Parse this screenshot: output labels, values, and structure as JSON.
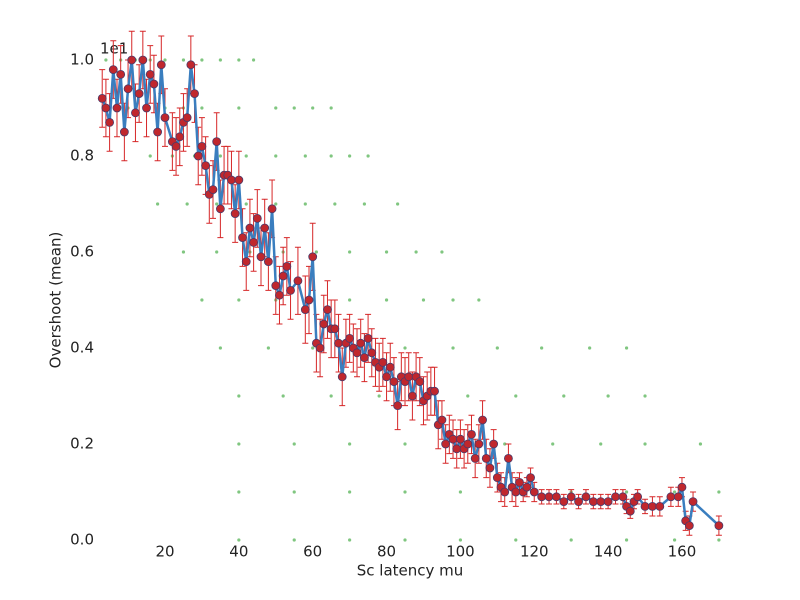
{
  "chart_data": {
    "type": "line",
    "xlabel": "Sc latency mu",
    "ylabel": "Overshoot (mean)",
    "offset_label": "1e1",
    "xlim": [
      2.4,
      170.3
    ],
    "ylim": [
      0,
      1.0
    ],
    "xticks": [
      20,
      40,
      60,
      80,
      100,
      120,
      140,
      160
    ],
    "yticks": [
      {
        "value": 0,
        "label": "0.0"
      },
      0.2,
      0.4,
      0.6,
      0.8,
      {
        "value": 1.0,
        "label": "1.0"
      }
    ],
    "series": [
      {
        "color": "#3a7ebf",
        "marker_color": "#c0272d",
        "error_color": "#d62728",
        "x": [
          3,
          4,
          5,
          6,
          7,
          8,
          9,
          10,
          11,
          12,
          13,
          14,
          15,
          16,
          17,
          18,
          19,
          20,
          22,
          23,
          24,
          25,
          26,
          27,
          28,
          29,
          30,
          31,
          32,
          33,
          34,
          35,
          36,
          37,
          38,
          39,
          40,
          41,
          42,
          43,
          44,
          45,
          46,
          47,
          48,
          49,
          50,
          51,
          52,
          53,
          54,
          56,
          58,
          59,
          60,
          61,
          62,
          63,
          64,
          65,
          66,
          67,
          68,
          69,
          70,
          71,
          72,
          73,
          74,
          75,
          76,
          77,
          78,
          79,
          80,
          81,
          82,
          83,
          84,
          85,
          86,
          87,
          88,
          89,
          90,
          91,
          92,
          93,
          94,
          95,
          96,
          97,
          98,
          99,
          100,
          101,
          102,
          103,
          104,
          105,
          106,
          107,
          108,
          109,
          110,
          111,
          112,
          113,
          114,
          115,
          116,
          117,
          118,
          119,
          120,
          122,
          124,
          126,
          128,
          130,
          132,
          134,
          136,
          138,
          140,
          142,
          144,
          145,
          146,
          147,
          148,
          150,
          152,
          154,
          157,
          159,
          160,
          161,
          162,
          163,
          170
        ],
        "values": [
          0.92,
          0.9,
          0.87,
          0.98,
          0.9,
          0.97,
          0.85,
          0.94,
          1.0,
          0.89,
          0.93,
          1.0,
          0.9,
          0.97,
          0.95,
          0.85,
          0.99,
          0.88,
          0.83,
          0.82,
          0.84,
          0.87,
          0.88,
          0.99,
          0.93,
          0.8,
          0.82,
          0.78,
          0.72,
          0.73,
          0.83,
          0.69,
          0.76,
          0.76,
          0.75,
          0.68,
          0.75,
          0.63,
          0.58,
          0.65,
          0.62,
          0.67,
          0.59,
          0.65,
          0.58,
          0.69,
          0.53,
          0.51,
          0.55,
          0.57,
          0.52,
          0.54,
          0.48,
          0.5,
          0.59,
          0.41,
          0.4,
          0.45,
          0.48,
          0.44,
          0.44,
          0.41,
          0.34,
          0.41,
          0.42,
          0.4,
          0.39,
          0.41,
          0.38,
          0.42,
          0.39,
          0.37,
          0.36,
          0.37,
          0.34,
          0.36,
          0.33,
          0.28,
          0.34,
          0.33,
          0.34,
          0.3,
          0.34,
          0.33,
          0.29,
          0.3,
          0.31,
          0.31,
          0.24,
          0.25,
          0.2,
          0.22,
          0.21,
          0.19,
          0.21,
          0.19,
          0.2,
          0.22,
          0.17,
          0.2,
          0.25,
          0.17,
          0.15,
          0.2,
          0.13,
          0.11,
          0.1,
          0.17,
          0.11,
          0.1,
          0.12,
          0.1,
          0.11,
          0.13,
          0.1,
          0.09,
          0.09,
          0.09,
          0.08,
          0.09,
          0.08,
          0.09,
          0.08,
          0.08,
          0.08,
          0.09,
          0.09,
          0.07,
          0.06,
          0.08,
          0.09,
          0.07,
          0.07,
          0.07,
          0.09,
          0.09,
          0.11,
          0.04,
          0.03,
          0.08,
          0.03
        ],
        "errors": [
          0.06,
          0.06,
          0.06,
          0.06,
          0.06,
          0.06,
          0.06,
          0.06,
          0.06,
          0.06,
          0.06,
          0.06,
          0.06,
          0.06,
          0.06,
          0.06,
          0.06,
          0.06,
          0.06,
          0.06,
          0.06,
          0.06,
          0.06,
          0.06,
          0.06,
          0.06,
          0.06,
          0.06,
          0.06,
          0.06,
          0.06,
          0.06,
          0.06,
          0.06,
          0.06,
          0.06,
          0.06,
          0.06,
          0.06,
          0.06,
          0.06,
          0.06,
          0.06,
          0.06,
          0.06,
          0.06,
          0.06,
          0.06,
          0.06,
          0.06,
          0.06,
          0.07,
          0.07,
          0.07,
          0.07,
          0.06,
          0.06,
          0.06,
          0.06,
          0.06,
          0.06,
          0.06,
          0.06,
          0.05,
          0.05,
          0.05,
          0.05,
          0.05,
          0.05,
          0.05,
          0.05,
          0.05,
          0.05,
          0.05,
          0.05,
          0.05,
          0.05,
          0.05,
          0.05,
          0.05,
          0.05,
          0.05,
          0.05,
          0.05,
          0.05,
          0.05,
          0.05,
          0.05,
          0.05,
          0.04,
          0.04,
          0.04,
          0.04,
          0.04,
          0.04,
          0.04,
          0.04,
          0.04,
          0.04,
          0.04,
          0.04,
          0.04,
          0.04,
          0.03,
          0.03,
          0.03,
          0.03,
          0.03,
          0.03,
          0.03,
          0.02,
          0.02,
          0.02,
          0.02,
          0.02,
          0.015,
          0.015,
          0.015,
          0.015,
          0.015,
          0.015,
          0.015,
          0.015,
          0.015,
          0.015,
          0.015,
          0.015,
          0.015,
          0.015,
          0.015,
          0.015,
          0.015,
          0.02,
          0.02,
          0.02,
          0.02,
          0.02,
          0.02,
          0.02,
          0.02,
          0.02
        ]
      }
    ],
    "raw": {
      "color": "#2ca02c",
      "x": [
        4,
        8,
        12,
        16,
        20,
        25,
        30,
        35,
        40,
        44,
        5,
        10,
        15,
        20,
        25,
        30,
        40,
        50,
        55,
        60,
        65,
        16,
        22,
        28,
        35,
        42,
        50,
        58,
        65,
        70,
        75,
        18,
        26,
        34,
        42,
        50,
        58,
        66,
        74,
        83,
        25,
        34,
        43,
        52,
        61,
        70,
        80,
        88,
        95,
        30,
        40,
        50,
        60,
        70,
        80,
        90,
        98,
        105,
        35,
        48,
        60,
        72,
        85,
        98,
        110,
        122,
        135,
        145,
        40,
        52,
        65,
        78,
        90,
        102,
        115,
        128,
        140,
        150,
        40,
        55,
        70,
        85,
        100,
        112,
        125,
        138,
        150,
        165,
        40,
        55,
        70,
        85,
        100,
        115,
        130,
        145,
        158,
        170,
        40,
        55,
        70,
        85,
        100,
        115,
        130,
        145,
        158,
        170
      ],
      "y": [
        1.0,
        1.0,
        1.0,
        1.0,
        1.0,
        1.0,
        1.0,
        1.0,
        1.0,
        1.0,
        0.9,
        0.9,
        0.9,
        0.9,
        0.9,
        0.9,
        0.9,
        0.9,
        0.9,
        0.9,
        0.9,
        0.8,
        0.8,
        0.8,
        0.8,
        0.8,
        0.8,
        0.8,
        0.8,
        0.8,
        0.8,
        0.7,
        0.7,
        0.7,
        0.7,
        0.7,
        0.7,
        0.7,
        0.7,
        0.7,
        0.6,
        0.6,
        0.6,
        0.6,
        0.6,
        0.6,
        0.6,
        0.6,
        0.6,
        0.5,
        0.5,
        0.5,
        0.5,
        0.5,
        0.5,
        0.5,
        0.5,
        0.5,
        0.4,
        0.4,
        0.4,
        0.4,
        0.4,
        0.4,
        0.4,
        0.4,
        0.4,
        0.4,
        0.3,
        0.3,
        0.3,
        0.3,
        0.3,
        0.3,
        0.3,
        0.3,
        0.3,
        0.3,
        0.2,
        0.2,
        0.2,
        0.2,
        0.2,
        0.2,
        0.2,
        0.2,
        0.2,
        0.2,
        0.1,
        0.1,
        0.1,
        0.1,
        0.1,
        0.1,
        0.1,
        0.1,
        0.1,
        0.1,
        0,
        0,
        0,
        0,
        0,
        0,
        0,
        0,
        0,
        0
      ]
    }
  }
}
